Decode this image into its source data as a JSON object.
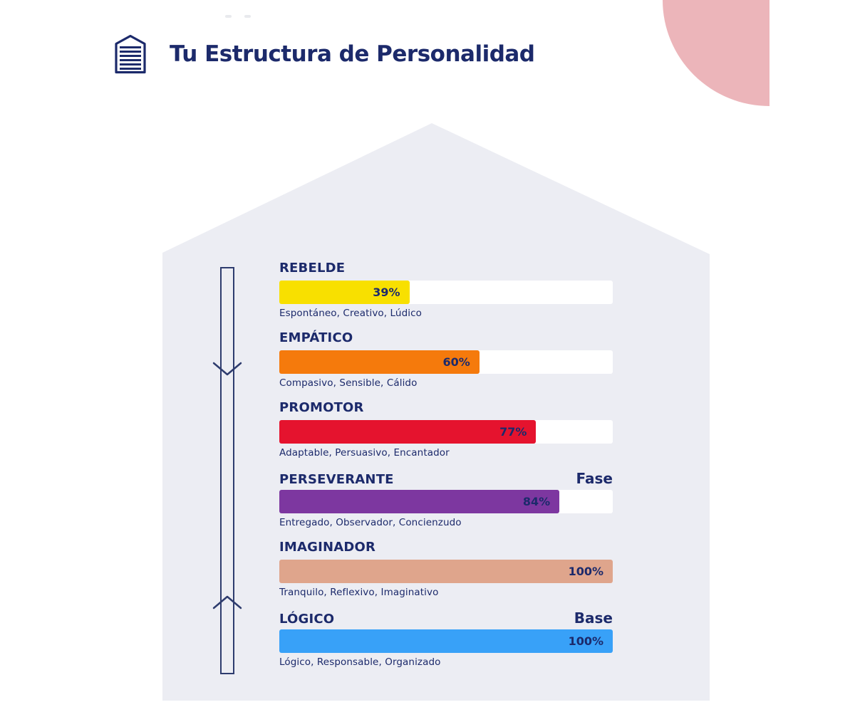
{
  "theme": {
    "navy": "#1c2a6b",
    "corner_pink": "#ecb5ba",
    "house_gray": "#ecedf3",
    "track_white": "#ffffff",
    "faint_dash": "#e9eaee",
    "arrow_stroke": "#2e3c6e"
  },
  "header": {
    "title": "Tu Estructura de Personalidad",
    "icon": "house-document-icon"
  },
  "decor": {
    "corner_shape": "quarter-circle",
    "backdrop_shape": "house"
  },
  "chart_data": {
    "type": "bar",
    "orientation": "horizontal",
    "title": "Tu Estructura de Personalidad",
    "value_range": [
      0,
      100
    ],
    "grid": false,
    "legend": false,
    "categories": [
      "REBELDE",
      "EMPÁTICO",
      "PROMOTOR",
      "PERSEVERANTE",
      "IMAGINADOR",
      "LÓGICO"
    ],
    "values": [
      39,
      60,
      77,
      84,
      100,
      100
    ],
    "bars": [
      {
        "label": "REBELDE",
        "value": 39,
        "value_label": "39%",
        "description": "Espontáneo, Creativo, Lúdico",
        "color": "#f8e000",
        "tag": ""
      },
      {
        "label": "EMPÁTICO",
        "value": 60,
        "value_label": "60%",
        "description": "Compasivo, Sensible, Cálido",
        "color": "#f57a0c",
        "tag": ""
      },
      {
        "label": "PROMOTOR",
        "value": 77,
        "value_label": "77%",
        "description": "Adaptable, Persuasivo, Encantador",
        "color": "#e5132e",
        "tag": ""
      },
      {
        "label": "PERSEVERANTE",
        "value": 84,
        "value_label": "84%",
        "description": "Entregado, Observador, Concienzudo",
        "color": "#7d37a0",
        "tag": "Fase"
      },
      {
        "label": "IMAGINADOR",
        "value": 100,
        "value_label": "100%",
        "description": "Tranquilo, Reflexivo, Imaginativo",
        "color": "#dfa58c",
        "tag": ""
      },
      {
        "label": "LÓGICO",
        "value": 100,
        "value_label": "100%",
        "description": "Lógico, Responsable, Organizado",
        "color": "#38a1f8",
        "tag": "Base"
      }
    ]
  }
}
